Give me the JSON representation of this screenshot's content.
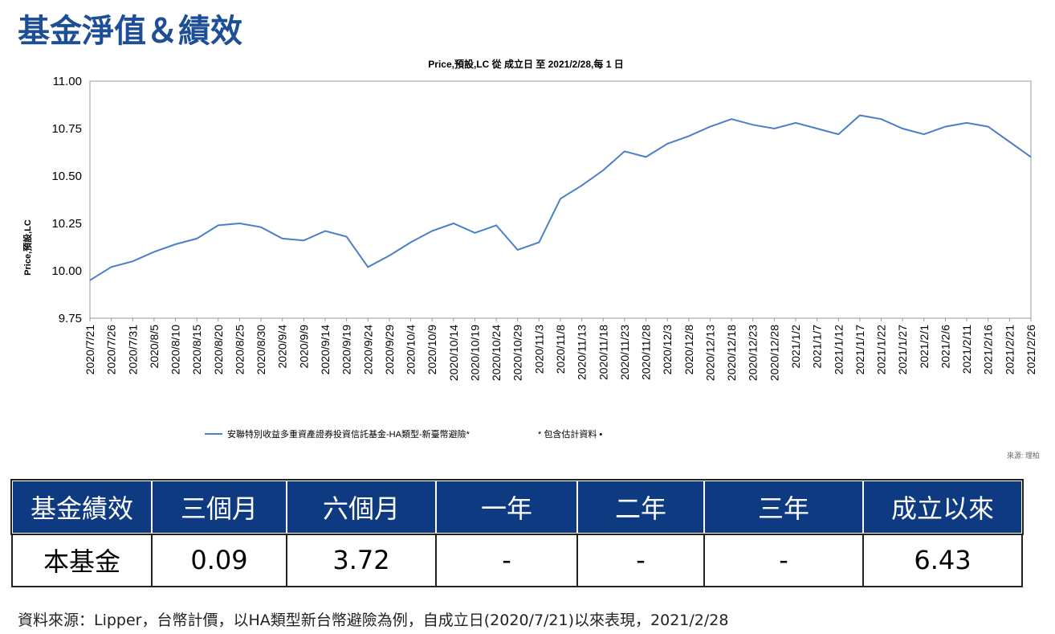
{
  "title": "基金淨值＆績效",
  "chart_data": {
    "type": "line",
    "title": "Price,預設,LC 從 成立日 至 2021/2/28,每 1 日",
    "ylabel": "Price,預設,LC",
    "xlabel": "",
    "ylim": [
      9.75,
      11.0
    ],
    "yticks": [
      "11.00",
      "10.75",
      "10.50",
      "10.25",
      "10.00",
      "9.75"
    ],
    "x": [
      "2020/7/21",
      "2020/7/26",
      "2020/7/31",
      "2020/8/5",
      "2020/8/10",
      "2020/8/15",
      "2020/8/20",
      "2020/8/25",
      "2020/8/30",
      "2020/9/4",
      "2020/9/9",
      "2020/9/14",
      "2020/9/19",
      "2020/9/24",
      "2020/9/29",
      "2020/10/4",
      "2020/10/9",
      "2020/10/14",
      "2020/10/19",
      "2020/10/24",
      "2020/10/29",
      "2020/11/3",
      "2020/11/8",
      "2020/11/13",
      "2020/11/18",
      "2020/11/23",
      "2020/11/28",
      "2020/12/3",
      "2020/12/8",
      "2020/12/13",
      "2020/12/18",
      "2020/12/23",
      "2020/12/28",
      "2021/1/2",
      "2021/1/7",
      "2021/1/12",
      "2021/1/17",
      "2021/1/22",
      "2021/1/27",
      "2021/2/1",
      "2021/2/6",
      "2021/2/11",
      "2021/2/16",
      "2021/2/21",
      "2021/2/26"
    ],
    "series": [
      {
        "name": "安聯特別收益多重資產證券投資信託基金-HA類型-新臺幣避險*",
        "color": "#4a7fc9",
        "values": [
          9.95,
          10.02,
          10.05,
          10.1,
          10.14,
          10.17,
          10.24,
          10.25,
          10.23,
          10.17,
          10.16,
          10.21,
          10.18,
          10.02,
          10.08,
          10.15,
          10.21,
          10.25,
          10.2,
          10.24,
          10.11,
          10.15,
          10.38,
          10.45,
          10.53,
          10.63,
          10.6,
          10.67,
          10.71,
          10.76,
          10.8,
          10.77,
          10.75,
          10.78,
          10.75,
          10.72,
          10.82,
          10.8,
          10.75,
          10.72,
          10.76,
          10.78,
          10.76,
          10.68,
          10.6
        ]
      }
    ],
    "legend_note": "*  包含估計資料 •",
    "source": "來源: 理柏",
    "grid": false,
    "legend_placement": "bottom"
  },
  "table": {
    "headers": [
      "基金績效",
      "三個月",
      "六個月",
      "一年",
      "二年",
      "三年",
      "成立以來"
    ],
    "row": [
      "本基金",
      "0.09",
      "3.72",
      "-",
      "-",
      "-",
      "6.43"
    ]
  },
  "note": "資料來源：Lipper，台幣計價，以HA類型新台幣避險為例，自成立日(2020/7/21)以來表現，2021/2/28"
}
